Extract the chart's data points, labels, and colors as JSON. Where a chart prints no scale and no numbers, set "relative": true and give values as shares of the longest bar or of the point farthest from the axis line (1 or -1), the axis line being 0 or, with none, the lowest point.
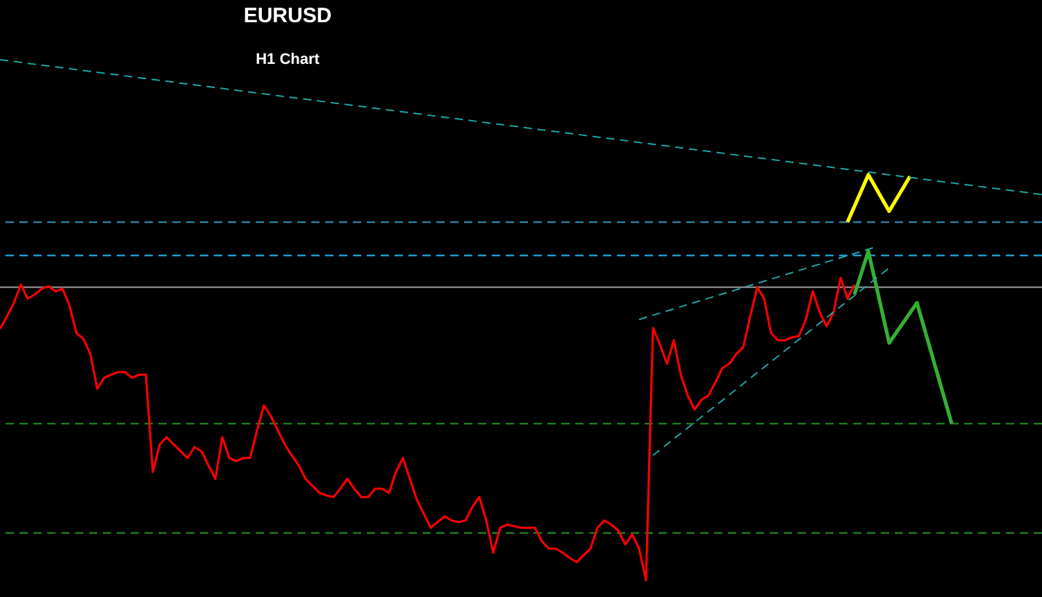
{
  "chart_data": {
    "type": "line",
    "title": "EURUSD",
    "subtitle": "H1 Chart",
    "relative": true,
    "categories": [
      null,
      null,
      null,
      null,
      null,
      null,
      null,
      null,
      null,
      null,
      null,
      null,
      null,
      null,
      null,
      null,
      null,
      null,
      null,
      null,
      null,
      null,
      null,
      null,
      null,
      null,
      null,
      null,
      null,
      null,
      null,
      null,
      null,
      null,
      null,
      null,
      null,
      null,
      null,
      null,
      null,
      null,
      null,
      null,
      null,
      null,
      null,
      null,
      null,
      null,
      null,
      null,
      null,
      null,
      null,
      null,
      null,
      null,
      null,
      null,
      null,
      null,
      null,
      null,
      null,
      null,
      null,
      null,
      null,
      null,
      null,
      null,
      null,
      null,
      null,
      null,
      null,
      null,
      null,
      null,
      null,
      null,
      null,
      null,
      null,
      null,
      null,
      null,
      null,
      null,
      null,
      null,
      null,
      null,
      null,
      null,
      null,
      null,
      null,
      null,
      null,
      null,
      null,
      null,
      null,
      null,
      null,
      null,
      null,
      null,
      null,
      null,
      null,
      null,
      null,
      null,
      null,
      null,
      null,
      null,
      null,
      null,
      null,
      null,
      null,
      null,
      null,
      null,
      null,
      null,
      null,
      null,
      null,
      null,
      null,
      null,
      null,
      null,
      null,
      null,
      null,
      null,
      null,
      null,
      null,
      null,
      null,
      null,
      null,
      null,
      null
    ],
    "series": [
      {
        "color": "#ff0000",
        "line_style": "solid",
        "values": [
          0.483,
          0.507,
          0.533,
          0.568,
          0.541,
          0.549,
          0.56,
          0.565,
          0.555,
          0.56,
          0.528,
          0.475,
          0.464,
          0.435,
          0.368,
          0.389,
          0.395,
          0.4,
          0.4,
          0.389,
          0.395,
          0.395,
          0.208,
          0.261,
          0.275,
          0.261,
          0.248,
          0.235,
          0.256,
          0.248,
          0.221,
          0.195,
          0.275,
          0.235,
          0.229,
          0.235,
          0.235,
          0.288,
          0.336,
          0.315,
          0.288,
          0.261,
          0.24,
          0.221,
          0.195,
          0.181,
          0.168,
          0.163,
          0.16,
          0.176,
          0.195,
          0.176,
          0.16,
          0.16,
          0.176,
          0.176,
          0.168,
          0.208,
          0.235,
          0.195,
          0.155,
          0.128,
          0.101,
          0.112,
          0.123,
          0.115,
          0.112,
          0.115,
          0.141,
          0.16,
          0.115,
          0.053,
          0.101,
          0.107,
          0.104,
          0.101,
          0.101,
          0.101,
          0.075,
          0.061,
          0.061,
          0.053,
          0.043,
          0.035,
          0.048,
          0.061,
          0.101,
          0.115,
          0.107,
          0.096,
          0.069,
          0.088,
          0.061,
          0,
          0.485,
          0.453,
          0.416,
          0.461,
          0.395,
          0.355,
          0.328,
          0.347,
          0.355,
          0.381,
          0.408,
          0.416,
          0.435,
          0.448,
          0.507,
          0.563,
          0.541,
          0.475,
          0.461,
          0.461,
          0.467,
          0.469,
          0.501,
          0.555,
          0.515,
          0.488,
          0.515,
          0.581,
          0.541,
          0.568,
          null,
          null,
          null,
          null,
          null,
          null,
          null,
          null,
          null,
          null,
          null,
          null,
          null,
          null,
          null,
          null,
          null,
          null,
          null,
          null,
          null,
          null,
          null,
          null,
          null,
          null,
          null
        ]
      },
      {
        "color": "#ffff00",
        "line_style": "solid",
        "values": [
          null,
          null,
          null,
          null,
          null,
          null,
          null,
          null,
          null,
          null,
          null,
          null,
          null,
          null,
          null,
          null,
          null,
          null,
          null,
          null,
          null,
          null,
          null,
          null,
          null,
          null,
          null,
          null,
          null,
          null,
          null,
          null,
          null,
          null,
          null,
          null,
          null,
          null,
          null,
          null,
          null,
          null,
          null,
          null,
          null,
          null,
          null,
          null,
          null,
          null,
          null,
          null,
          null,
          null,
          null,
          null,
          null,
          null,
          null,
          null,
          null,
          null,
          null,
          null,
          null,
          null,
          null,
          null,
          null,
          null,
          null,
          null,
          null,
          null,
          null,
          null,
          null,
          null,
          null,
          null,
          null,
          null,
          null,
          null,
          null,
          null,
          null,
          null,
          null,
          null,
          null,
          null,
          null,
          null,
          null,
          null,
          null,
          null,
          null,
          null,
          null,
          null,
          null,
          null,
          null,
          null,
          null,
          null,
          null,
          null,
          null,
          null,
          null,
          null,
          null,
          null,
          null,
          null,
          null,
          null,
          null,
          null,
          0.688,
          null,
          null,
          0.779,
          null,
          null,
          0.709,
          null,
          null,
          0.776,
          null,
          null,
          null,
          null,
          null,
          null,
          null,
          null,
          null,
          null,
          null,
          null,
          null,
          null,
          null,
          null,
          null,
          null,
          null
        ]
      },
      {
        "color": "#33b033",
        "line_style": "solid",
        "values": [
          null,
          null,
          null,
          null,
          null,
          null,
          null,
          null,
          null,
          null,
          null,
          null,
          null,
          null,
          null,
          null,
          null,
          null,
          null,
          null,
          null,
          null,
          null,
          null,
          null,
          null,
          null,
          null,
          null,
          null,
          null,
          null,
          null,
          null,
          null,
          null,
          null,
          null,
          null,
          null,
          null,
          null,
          null,
          null,
          null,
          null,
          null,
          null,
          null,
          null,
          null,
          null,
          null,
          null,
          null,
          null,
          null,
          null,
          null,
          null,
          null,
          null,
          null,
          null,
          null,
          null,
          null,
          null,
          null,
          null,
          null,
          null,
          null,
          null,
          null,
          null,
          null,
          null,
          null,
          null,
          null,
          null,
          null,
          null,
          null,
          null,
          null,
          null,
          null,
          null,
          null,
          null,
          null,
          null,
          null,
          null,
          null,
          null,
          null,
          null,
          null,
          null,
          null,
          null,
          null,
          null,
          null,
          null,
          null,
          null,
          null,
          null,
          null,
          null,
          null,
          null,
          null,
          null,
          null,
          null,
          null,
          null,
          null,
          0.549,
          null,
          0.632,
          null,
          null,
          0.456,
          null,
          null,
          null,
          0.533,
          null,
          null,
          null,
          null,
          0.301,
          null,
          null,
          null,
          null,
          null,
          null,
          null,
          null,
          null,
          null,
          null,
          null,
          null
        ]
      },
      {
        "color": "#1fa5a5",
        "line_style": "dashed",
        "values": [
          1,
          null,
          null,
          null,
          null,
          null,
          null,
          null,
          null,
          null,
          null,
          null,
          null,
          null,
          null,
          null,
          null,
          null,
          null,
          null,
          null,
          null,
          null,
          null,
          null,
          null,
          null,
          null,
          null,
          null,
          null,
          null,
          null,
          null,
          null,
          null,
          null,
          null,
          null,
          null,
          null,
          null,
          null,
          null,
          null,
          null,
          null,
          null,
          null,
          null,
          null,
          null,
          null,
          null,
          null,
          null,
          null,
          null,
          null,
          null,
          null,
          null,
          null,
          null,
          null,
          null,
          null,
          null,
          null,
          null,
          null,
          null,
          null,
          null,
          null,
          null,
          null,
          null,
          null,
          null,
          null,
          null,
          null,
          null,
          null,
          null,
          null,
          null,
          null,
          null,
          null,
          null,
          null,
          null,
          null,
          null,
          null,
          null,
          null,
          null,
          null,
          null,
          null,
          null,
          null,
          null,
          null,
          null,
          null,
          null,
          null,
          null,
          null,
          null,
          null,
          null,
          null,
          null,
          null,
          null,
          null,
          null,
          null,
          null,
          null,
          null,
          null,
          null,
          null,
          null,
          null,
          null,
          null,
          null,
          null,
          null,
          null,
          null,
          null,
          null,
          null,
          null,
          null,
          null,
          null,
          null,
          null,
          null,
          null,
          null,
          0.741
        ]
      },
      {
        "color": "#1fa5a5",
        "line_style": "dashed",
        "values": [
          null,
          null,
          null,
          null,
          null,
          null,
          null,
          null,
          null,
          null,
          null,
          null,
          null,
          null,
          null,
          null,
          null,
          null,
          null,
          null,
          null,
          null,
          null,
          null,
          null,
          null,
          null,
          null,
          null,
          null,
          null,
          null,
          null,
          null,
          null,
          null,
          null,
          null,
          null,
          null,
          null,
          null,
          null,
          null,
          null,
          null,
          null,
          null,
          null,
          null,
          null,
          null,
          null,
          null,
          null,
          null,
          null,
          null,
          null,
          null,
          null,
          null,
          null,
          null,
          null,
          null,
          null,
          null,
          null,
          null,
          null,
          null,
          null,
          null,
          null,
          null,
          null,
          null,
          null,
          null,
          null,
          null,
          null,
          null,
          null,
          null,
          null,
          null,
          null,
          null,
          null,
          null,
          0.501,
          null,
          null,
          null,
          null,
          null,
          null,
          null,
          null,
          null,
          null,
          null,
          null,
          null,
          null,
          null,
          null,
          null,
          null,
          null,
          null,
          null,
          null,
          null,
          null,
          null,
          null,
          null,
          null,
          null,
          null,
          null,
          null,
          null,
          0.64,
          null,
          null,
          null,
          null,
          null,
          null,
          null,
          null,
          null,
          null,
          null,
          null,
          null,
          null,
          null,
          null,
          null,
          null,
          null,
          null,
          null,
          null,
          null,
          null
        ]
      },
      {
        "color": "#1fa5a5",
        "line_style": "dashed",
        "values": [
          null,
          null,
          null,
          null,
          null,
          null,
          null,
          null,
          null,
          null,
          null,
          null,
          null,
          null,
          null,
          null,
          null,
          null,
          null,
          null,
          null,
          null,
          null,
          null,
          null,
          null,
          null,
          null,
          null,
          null,
          null,
          null,
          null,
          null,
          null,
          null,
          null,
          null,
          null,
          null,
          null,
          null,
          null,
          null,
          null,
          null,
          null,
          null,
          null,
          null,
          null,
          null,
          null,
          null,
          null,
          null,
          null,
          null,
          null,
          null,
          null,
          null,
          null,
          null,
          null,
          null,
          null,
          null,
          null,
          null,
          null,
          null,
          null,
          null,
          null,
          null,
          null,
          null,
          null,
          null,
          null,
          null,
          null,
          null,
          null,
          null,
          null,
          null,
          null,
          null,
          null,
          null,
          null,
          null,
          0.24,
          null,
          null,
          null,
          null,
          null,
          null,
          null,
          null,
          null,
          null,
          null,
          null,
          null,
          null,
          null,
          null,
          null,
          null,
          null,
          null,
          null,
          null,
          null,
          null,
          null,
          null,
          null,
          null,
          null,
          null,
          null,
          null,
          null,
          0.6,
          null,
          null,
          null,
          null,
          null,
          null,
          null,
          null,
          null,
          null,
          null,
          null,
          null,
          null,
          null,
          null,
          null,
          null,
          null,
          null,
          null,
          null
        ]
      }
    ],
    "ref_lines": [
      {
        "axis": "y",
        "value": 0.688,
        "color": "#2e7fa0",
        "line_style": "dashed"
      },
      {
        "axis": "y",
        "value": 0.624,
        "color": "#1e9bd0",
        "line_style": "dashed"
      },
      {
        "axis": "y",
        "value": 0.563,
        "color": "#808080",
        "line_style": "solid"
      },
      {
        "axis": "y",
        "value": 0.301,
        "color": "#1f7a1f",
        "line_style": "dashed"
      },
      {
        "axis": "y",
        "value": 0.091,
        "color": "#1f7a1f",
        "line_style": "dashed"
      }
    ]
  }
}
